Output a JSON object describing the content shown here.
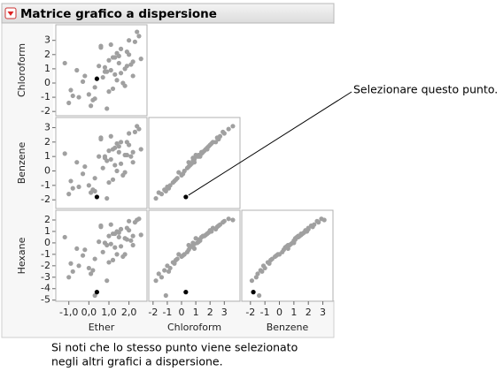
{
  "chart_data": {
    "type": "scatter-matrix",
    "title": "Matrice grafico a dispersione",
    "annotation": "Selezionare questo punto.",
    "caption": [
      "Si noti che lo stesso punto viene selezionato",
      "negli altri grafici a dispersione."
    ],
    "point_color": "#a0a0a0",
    "selected_color": "#000000",
    "selected": 0,
    "variables": [
      {
        "name": "Ether",
        "lim": [
          -1.65,
          2.9
        ],
        "ticks": [
          {
            "value": -1,
            "label": "-1,0"
          },
          {
            "value": 0,
            "label": "0,0"
          },
          {
            "value": 1,
            "label": "1,0"
          },
          {
            "value": 2,
            "label": "2,0"
          }
        ],
        "values": [
          0.4,
          -1.2,
          -0.9,
          -0.5,
          -0.2,
          0.1,
          0.3,
          0.6,
          0.8,
          1.0,
          1.2,
          1.4,
          1.6,
          1.8,
          2.0,
          2.2,
          2.4,
          -1.0,
          -0.6,
          0.0,
          0.5,
          0.9,
          1.1,
          1.3,
          1.5,
          1.7,
          1.9,
          2.1,
          2.3,
          2.6,
          0.2,
          0.7,
          1.0,
          1.4,
          1.8,
          -0.3,
          0.8,
          1.2,
          1.6,
          2.0,
          0.6,
          1.1,
          1.5,
          2.2,
          -0.8,
          0.3,
          0.9,
          1.3,
          1.9,
          2.5
        ]
      },
      {
        "name": "Chloroform",
        "lim": [
          -2.3,
          4.1
        ],
        "ticks": [
          -2,
          -1,
          0,
          1,
          2,
          3
        ],
        "values": [
          0.3,
          1.4,
          -0.5,
          -1.0,
          0.5,
          -1.6,
          -0.3,
          2.6,
          0.8,
          -0.6,
          1.8,
          0.2,
          2.4,
          1.0,
          3.0,
          1.5,
          3.6,
          -1.4,
          0.9,
          -0.8,
          1.2,
          -1.8,
          2.7,
          0.6,
          1.9,
          0.0,
          2.2,
          1.3,
          2.9,
          1.7,
          -1.2,
          0.4,
          1.6,
          2.1,
          -0.2,
          0.1,
          1.1,
          -0.4,
          0.7,
          2.0,
          2.5,
          0.9,
          1.4,
          0.5,
          -0.9,
          -1.1,
          0.8,
          1.8,
          1.2,
          3.3
        ]
      },
      {
        "name": "Benzene",
        "lim": [
          -2.6,
          3.7
        ],
        "ticks": [
          -2,
          -1,
          0,
          1,
          2,
          3
        ],
        "values": [
          -1.8,
          1.2,
          -0.7,
          -1.1,
          0.3,
          -1.5,
          -0.5,
          2.2,
          0.9,
          -0.8,
          1.5,
          0.0,
          2.0,
          1.1,
          2.6,
          1.3,
          3.1,
          -1.6,
          0.6,
          -1.0,
          1.0,
          -1.9,
          2.4,
          0.4,
          1.7,
          -0.3,
          2.0,
          1.0,
          2.7,
          1.5,
          -1.3,
          0.2,
          1.4,
          1.9,
          -0.1,
          -0.2,
          1.0,
          -0.6,
          0.5,
          1.8,
          2.3,
          0.8,
          1.3,
          0.6,
          -1.2,
          -1.4,
          0.7,
          1.6,
          1.1,
          2.9
        ]
      },
      {
        "name": "Hexane",
        "lim": [
          -5.1,
          2.85
        ],
        "ticks": [
          -5,
          -4,
          -3,
          -2,
          -1,
          0,
          1,
          2
        ],
        "values": [
          -4.3,
          0.5,
          -1.8,
          -2.0,
          -0.6,
          -2.7,
          -1.4,
          1.5,
          0.0,
          -1.7,
          0.8,
          -1.0,
          1.2,
          0.4,
          1.9,
          0.6,
          2.0,
          -3.0,
          -0.5,
          -2.2,
          0.1,
          -3.3,
          1.6,
          -0.4,
          0.9,
          -1.2,
          1.3,
          0.2,
          1.8,
          0.7,
          -2.4,
          -0.8,
          0.6,
          1.0,
          -1.0,
          -1.1,
          0.0,
          -1.5,
          -0.3,
          1.1,
          1.4,
          -0.1,
          0.5,
          -0.2,
          -2.5,
          -4.6,
          -0.2,
          0.8,
          0.3,
          2.1
        ]
      }
    ]
  }
}
